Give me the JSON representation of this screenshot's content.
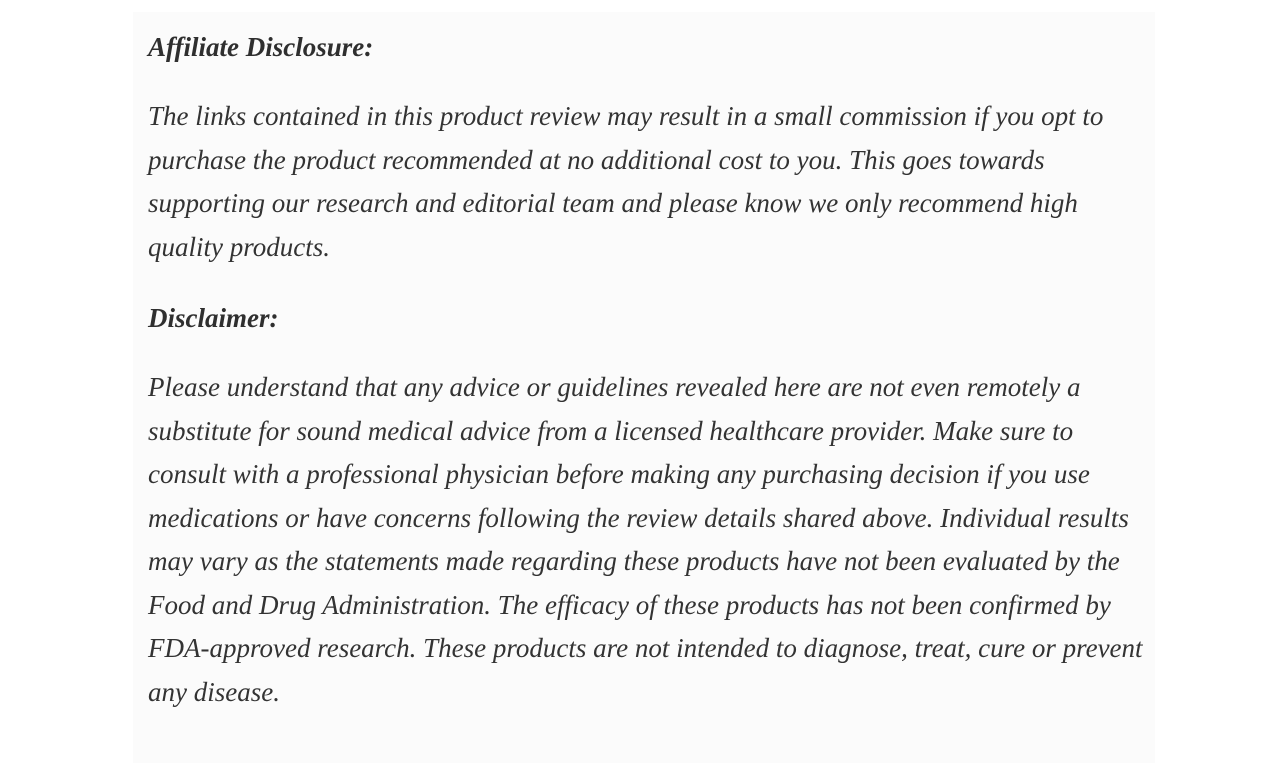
{
  "colors": {
    "page_background": "#ffffff",
    "panel_background": "#fbfbfb",
    "heading_text": "#2f2f2f",
    "body_text": "#333333"
  },
  "sections": [
    {
      "heading": "Affiliate Disclosure:",
      "body": "The links contained in this product review may result in a small commission if you opt to purchase the product recommended at no additional cost to you. This goes towards supporting our research and editorial team and please know we only recommend high quality products."
    },
    {
      "heading": "Disclaimer:",
      "body": "Please understand that any advice or guidelines revealed here are not even remotely a substitute for sound medical advice from a licensed healthcare provider. Make sure to consult with a professional physician before making any purchasing decision if you use medications or have concerns following the review details shared above. Individual results may vary as the statements made regarding these products have not been evaluated by the Food and Drug Administration. The efficacy of these products has not been confirmed by FDA-approved research. These products are not intended to diagnose, treat, cure or prevent any disease."
    }
  ]
}
